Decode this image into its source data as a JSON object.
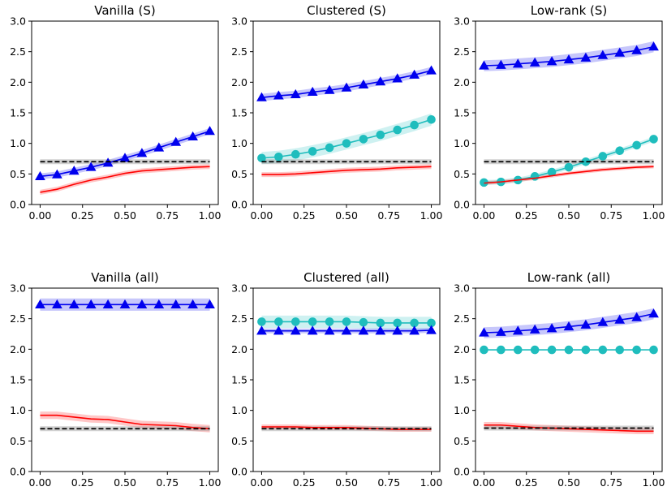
{
  "chart_data": [
    {
      "type": "line",
      "title": "Vanilla (S)",
      "x": [
        0.0,
        0.1,
        0.2,
        0.3,
        0.4,
        0.5,
        0.6,
        0.7,
        0.8,
        0.9,
        1.0
      ],
      "xticks": [
        "0.00",
        "0.25",
        "0.50",
        "0.75",
        "1.00"
      ],
      "yticks": [
        "0.0",
        "0.5",
        "1.0",
        "1.5",
        "2.0",
        "2.5",
        "3.0"
      ],
      "xlim": [
        -0.05,
        1.05
      ],
      "ylim": [
        0,
        3
      ],
      "series": [
        {
          "color": "#0000ee",
          "marker": "triangle",
          "values": [
            0.46,
            0.49,
            0.55,
            0.61,
            0.68,
            0.76,
            0.84,
            0.93,
            1.02,
            1.11,
            1.2
          ],
          "band": 0.05
        },
        {
          "color": "#ff0000",
          "marker": "none",
          "values": [
            0.2,
            0.25,
            0.33,
            0.4,
            0.45,
            0.51,
            0.55,
            0.57,
            0.59,
            0.61,
            0.62
          ],
          "band": 0.04
        },
        {
          "color": "#000000",
          "marker": "none",
          "dashed": true,
          "values": [
            0.7,
            0.7,
            0.7,
            0.7,
            0.7,
            0.7,
            0.7,
            0.7,
            0.7,
            0.7,
            0.7
          ],
          "band": 0.04
        }
      ]
    },
    {
      "type": "line",
      "title": "Clustered (S)",
      "x": [
        0.0,
        0.1,
        0.2,
        0.3,
        0.4,
        0.5,
        0.6,
        0.7,
        0.8,
        0.9,
        1.0
      ],
      "xticks": [
        "0.00",
        "0.25",
        "0.50",
        "0.75",
        "1.00"
      ],
      "yticks": [
        "0.0",
        "0.5",
        "1.0",
        "1.5",
        "2.0",
        "2.5",
        "3.0"
      ],
      "xlim": [
        -0.05,
        1.05
      ],
      "ylim": [
        0,
        3
      ],
      "series": [
        {
          "color": "#0000ee",
          "marker": "triangle",
          "values": [
            1.75,
            1.78,
            1.8,
            1.84,
            1.87,
            1.91,
            1.96,
            2.01,
            2.06,
            2.12,
            2.19
          ],
          "band": 0.06
        },
        {
          "color": "#1fbdbd",
          "marker": "circle",
          "values": [
            0.76,
            0.78,
            0.82,
            0.87,
            0.93,
            1.0,
            1.07,
            1.14,
            1.22,
            1.3,
            1.39
          ],
          "band": 0.1
        },
        {
          "color": "#ff0000",
          "marker": "none",
          "values": [
            0.49,
            0.49,
            0.5,
            0.52,
            0.54,
            0.56,
            0.57,
            0.58,
            0.6,
            0.61,
            0.62
          ],
          "band": 0.04
        },
        {
          "color": "#000000",
          "marker": "none",
          "dashed": true,
          "values": [
            0.7,
            0.7,
            0.7,
            0.7,
            0.7,
            0.7,
            0.7,
            0.7,
            0.7,
            0.7,
            0.7
          ],
          "band": 0.04
        }
      ]
    },
    {
      "type": "line",
      "title": "Low-rank (S)",
      "x": [
        0.0,
        0.1,
        0.2,
        0.3,
        0.4,
        0.5,
        0.6,
        0.7,
        0.8,
        0.9,
        1.0
      ],
      "xticks": [
        "0.00",
        "0.25",
        "0.50",
        "0.75",
        "1.00"
      ],
      "yticks": [
        "0.0",
        "0.5",
        "1.0",
        "1.5",
        "2.0",
        "2.5",
        "3.0"
      ],
      "xlim": [
        -0.05,
        1.05
      ],
      "ylim": [
        0,
        3
      ],
      "series": [
        {
          "color": "#0000ee",
          "marker": "triangle",
          "values": [
            2.27,
            2.28,
            2.3,
            2.32,
            2.34,
            2.37,
            2.4,
            2.44,
            2.48,
            2.52,
            2.58
          ],
          "band": 0.09
        },
        {
          "color": "#1fbdbd",
          "marker": "circle",
          "values": [
            0.36,
            0.37,
            0.4,
            0.46,
            0.53,
            0.61,
            0.7,
            0.79,
            0.88,
            0.97,
            1.07
          ],
          "band": 0.04
        },
        {
          "color": "#ff0000",
          "marker": "none",
          "values": [
            0.35,
            0.37,
            0.4,
            0.43,
            0.47,
            0.51,
            0.54,
            0.57,
            0.59,
            0.61,
            0.62
          ],
          "band": 0.03
        },
        {
          "color": "#000000",
          "marker": "none",
          "dashed": true,
          "values": [
            0.7,
            0.7,
            0.7,
            0.7,
            0.7,
            0.7,
            0.7,
            0.7,
            0.7,
            0.7,
            0.7
          ],
          "band": 0.04
        }
      ]
    },
    {
      "type": "line",
      "title": "Vanilla (all)",
      "x": [
        0.0,
        0.1,
        0.2,
        0.3,
        0.4,
        0.5,
        0.6,
        0.7,
        0.8,
        0.9,
        1.0
      ],
      "xticks": [
        "0.00",
        "0.25",
        "0.50",
        "0.75",
        "1.00"
      ],
      "yticks": [
        "0.0",
        "0.5",
        "1.0",
        "1.5",
        "2.0",
        "2.5",
        "3.0"
      ],
      "xlim": [
        -0.05,
        1.05
      ],
      "ylim": [
        0,
        3
      ],
      "series": [
        {
          "color": "#0000ee",
          "marker": "triangle",
          "values": [
            2.73,
            2.73,
            2.73,
            2.73,
            2.73,
            2.73,
            2.73,
            2.73,
            2.73,
            2.73,
            2.73
          ],
          "band": 0.1
        },
        {
          "color": "#ff0000",
          "marker": "none",
          "values": [
            0.92,
            0.92,
            0.89,
            0.86,
            0.85,
            0.81,
            0.77,
            0.76,
            0.75,
            0.72,
            0.7
          ],
          "band": 0.06
        },
        {
          "color": "#000000",
          "marker": "none",
          "dashed": true,
          "values": [
            0.7,
            0.7,
            0.7,
            0.7,
            0.7,
            0.7,
            0.7,
            0.7,
            0.7,
            0.7,
            0.7
          ],
          "band": 0.04
        }
      ]
    },
    {
      "type": "line",
      "title": "Clustered (all)",
      "x": [
        0.0,
        0.1,
        0.2,
        0.3,
        0.4,
        0.5,
        0.6,
        0.7,
        0.8,
        0.9,
        1.0
      ],
      "xticks": [
        "0.00",
        "0.25",
        "0.50",
        "0.75",
        "1.00"
      ],
      "yticks": [
        "0.0",
        "0.5",
        "1.0",
        "1.5",
        "2.0",
        "2.5",
        "3.0"
      ],
      "xlim": [
        -0.05,
        1.05
      ],
      "ylim": [
        0,
        3
      ],
      "series": [
        {
          "color": "#1fbdbd",
          "marker": "circle",
          "values": [
            2.45,
            2.45,
            2.45,
            2.45,
            2.45,
            2.45,
            2.44,
            2.43,
            2.43,
            2.43,
            2.43
          ],
          "band": 0.1
        },
        {
          "color": "#0000ee",
          "marker": "triangle",
          "values": [
            2.3,
            2.3,
            2.3,
            2.3,
            2.3,
            2.3,
            2.3,
            2.3,
            2.3,
            2.3,
            2.31
          ],
          "band": 0.04
        },
        {
          "color": "#ff0000",
          "marker": "none",
          "values": [
            0.73,
            0.73,
            0.73,
            0.72,
            0.72,
            0.72,
            0.71,
            0.7,
            0.69,
            0.69,
            0.69
          ],
          "band": 0.04
        },
        {
          "color": "#000000",
          "marker": "none",
          "dashed": true,
          "values": [
            0.7,
            0.7,
            0.7,
            0.7,
            0.7,
            0.7,
            0.7,
            0.7,
            0.7,
            0.7,
            0.7
          ],
          "band": 0.04
        }
      ]
    },
    {
      "type": "line",
      "title": "Low-rank (all)",
      "x": [
        0.0,
        0.1,
        0.2,
        0.3,
        0.4,
        0.5,
        0.6,
        0.7,
        0.8,
        0.9,
        1.0
      ],
      "xticks": [
        "0.00",
        "0.25",
        "0.50",
        "0.75",
        "1.00"
      ],
      "yticks": [
        "0.0",
        "0.5",
        "1.0",
        "1.5",
        "2.0",
        "2.5",
        "3.0"
      ],
      "xlim": [
        -0.05,
        1.05
      ],
      "ylim": [
        0,
        3
      ],
      "series": [
        {
          "color": "#0000ee",
          "marker": "triangle",
          "values": [
            2.27,
            2.28,
            2.3,
            2.32,
            2.34,
            2.37,
            2.4,
            2.44,
            2.48,
            2.52,
            2.58
          ],
          "band": 0.09
        },
        {
          "color": "#1fbdbd",
          "marker": "circle",
          "values": [
            1.99,
            1.99,
            1.99,
            1.99,
            1.99,
            1.99,
            1.99,
            1.99,
            1.99,
            1.99,
            1.99
          ],
          "band": 0.0
        },
        {
          "color": "#ff0000",
          "marker": "none",
          "values": [
            0.76,
            0.76,
            0.74,
            0.72,
            0.71,
            0.7,
            0.69,
            0.68,
            0.67,
            0.66,
            0.66
          ],
          "band": 0.05
        },
        {
          "color": "#000000",
          "marker": "none",
          "dashed": true,
          "values": [
            0.71,
            0.71,
            0.71,
            0.71,
            0.71,
            0.71,
            0.71,
            0.71,
            0.71,
            0.71,
            0.71
          ],
          "band": 0.04
        }
      ]
    }
  ]
}
